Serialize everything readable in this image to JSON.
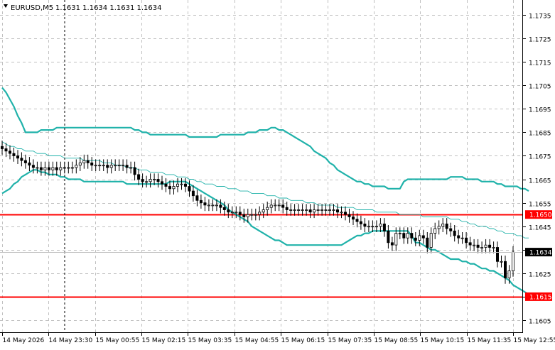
{
  "header": {
    "symbol": "EURUSD,M5",
    "ohlc": "1.1631 1.1634 1.1631 1.1634"
  },
  "colors": {
    "background": "#ffffff",
    "grid": "#c0c0c0",
    "candle": "#000000",
    "band": "#20b2aa",
    "ma": "#20b2aa",
    "level": "#ff0000",
    "price_label_bg": "#000000",
    "level_label_bg": "#ff0000"
  },
  "chart_data": {
    "type": "candlestick",
    "title": "",
    "grid": true,
    "ylim": [
      1.16,
      1.1745
    ],
    "y_ticks": [
      "1.1735",
      "1.1725",
      "1.1715",
      "1.1705",
      "1.1695",
      "1.1685",
      "1.1675",
      "1.1665",
      "1.1655",
      "1.1645",
      "1.1635",
      "1.1625",
      "1.1615",
      "1.1605"
    ],
    "x_ticks": [
      "14 May 2026",
      "14 May 23:30",
      "15 May 00:55",
      "15 May 02:15",
      "15 May 03:35",
      "15 May 04:55",
      "15 May 06:15",
      "15 May 07:35",
      "15 May 08:55",
      "15 May 10:15",
      "15 May 11:35",
      "15 May 12:55"
    ],
    "current_price": "1.1634",
    "levels": [
      {
        "label": "1.1650",
        "value": 1.165
      },
      {
        "label": "1.1615",
        "value": 1.1615
      }
    ],
    "cursor_time": "14 May 23:30",
    "candle_count": 132,
    "close": [
      1.1678,
      1.1677,
      1.1676,
      1.1675,
      1.1674,
      1.1673,
      1.1672,
      1.1671,
      1.167,
      1.167,
      1.1669,
      1.167,
      1.1669,
      1.167,
      1.1669,
      1.167,
      1.167,
      1.167,
      1.167,
      1.1671,
      1.1672,
      1.1673,
      1.1672,
      1.1671,
      1.1671,
      1.1671,
      1.1671,
      1.167,
      1.1671,
      1.1671,
      1.1671,
      1.1671,
      1.167,
      1.167,
      1.1667,
      1.1665,
      1.1664,
      1.1664,
      1.1665,
      1.1665,
      1.1664,
      1.1663,
      1.1662,
      1.1661,
      1.1662,
      1.1663,
      1.1663,
      1.1662,
      1.166,
      1.1658,
      1.1656,
      1.1655,
      1.1654,
      1.1654,
      1.1654,
      1.1654,
      1.1653,
      1.1652,
      1.1651,
      1.1651,
      1.1651,
      1.165,
      1.1649,
      1.165,
      1.165,
      1.165,
      1.1651,
      1.1652,
      1.1653,
      1.1654,
      1.1654,
      1.1654,
      1.1653,
      1.1652,
      1.1652,
      1.1652,
      1.1652,
      1.1652,
      1.1652,
      1.1651,
      1.1652,
      1.1652,
      1.1652,
      1.1652,
      1.1652,
      1.1652,
      1.1651,
      1.1651,
      1.165,
      1.1649,
      1.1648,
      1.1647,
      1.1646,
      1.1645,
      1.1645,
      1.1645,
      1.1645,
      1.1646,
      1.1643,
      1.1638,
      1.1637,
      1.1642,
      1.1642,
      1.164,
      1.1642,
      1.164,
      1.1639,
      1.1641,
      1.164,
      1.1636,
      1.1642,
      1.1644,
      1.1645,
      1.1646,
      1.1644,
      1.1643,
      1.1641,
      1.164,
      1.164,
      1.1638,
      1.1637,
      1.1637,
      1.1636,
      1.1636,
      1.1637,
      1.1636,
      1.1636,
      1.163,
      1.163,
      1.1623,
      1.1626,
      1.1634
    ],
    "series": [
      {
        "name": "Upper band",
        "values": [
          1.1704,
          1.1702,
          1.1699,
          1.1696,
          1.1692,
          1.1689,
          1.1685,
          1.1685,
          1.1685,
          1.1685,
          1.1686,
          1.1686,
          1.1686,
          1.1686,
          1.1687,
          1.1687,
          1.1687,
          1.1687,
          1.1687,
          1.1687,
          1.1687,
          1.1687,
          1.1687,
          1.1687,
          1.1687,
          1.1687,
          1.1687,
          1.1687,
          1.1687,
          1.1687,
          1.1687,
          1.1687,
          1.1687,
          1.1687,
          1.1686,
          1.1686,
          1.1685,
          1.1685,
          1.1684,
          1.1684,
          1.1684,
          1.1684,
          1.1684,
          1.1684,
          1.1684,
          1.1684,
          1.1684,
          1.1684,
          1.1683,
          1.1683,
          1.1683,
          1.1683,
          1.1683,
          1.1683,
          1.1683,
          1.1683,
          1.1684,
          1.1684,
          1.1684,
          1.1684,
          1.1684,
          1.1684,
          1.1684,
          1.1685,
          1.1685,
          1.1685,
          1.1686,
          1.1686,
          1.1686,
          1.1687,
          1.1687,
          1.1686,
          1.1686,
          1.1685,
          1.1684,
          1.1683,
          1.1682,
          1.1681,
          1.168,
          1.1679,
          1.1677,
          1.1676,
          1.1675,
          1.1674,
          1.1672,
          1.1671,
          1.1669,
          1.1668,
          1.1667,
          1.1666,
          1.1665,
          1.1664,
          1.1664,
          1.1663,
          1.1663,
          1.1662,
          1.1662,
          1.1662,
          1.1662,
          1.1661,
          1.1661,
          1.1661,
          1.1661,
          1.1664,
          1.1665,
          1.1665,
          1.1665,
          1.1665,
          1.1665,
          1.1665,
          1.1665,
          1.1665,
          1.1665,
          1.1665,
          1.1665,
          1.1666,
          1.1666,
          1.1666,
          1.1666,
          1.1665,
          1.1665,
          1.1665,
          1.1665,
          1.1664,
          1.1664,
          1.1664,
          1.1664,
          1.1663,
          1.1663,
          1.1662,
          1.1662,
          1.1662,
          1.1662,
          1.1661,
          1.1661,
          1.166
        ]
      },
      {
        "name": "Middle band",
        "values": [
          1.1681,
          1.168,
          1.1679,
          1.1679,
          1.1678,
          1.1678,
          1.1677,
          1.1677,
          1.1677,
          1.1676,
          1.1676,
          1.1676,
          1.1675,
          1.1675,
          1.1675,
          1.1675,
          1.1674,
          1.1674,
          1.1674,
          1.1674,
          1.1674,
          1.1673,
          1.1673,
          1.1673,
          1.1673,
          1.1673,
          1.1672,
          1.1672,
          1.1672,
          1.1671,
          1.1671,
          1.1671,
          1.167,
          1.167,
          1.167,
          1.1669,
          1.1669,
          1.1669,
          1.1668,
          1.1668,
          1.1668,
          1.1668,
          1.1667,
          1.1667,
          1.1667,
          1.1666,
          1.1666,
          1.1666,
          1.1665,
          1.1665,
          1.1664,
          1.1664,
          1.1663,
          1.1663,
          1.1663,
          1.1662,
          1.1662,
          1.1662,
          1.1661,
          1.1661,
          1.1661,
          1.166,
          1.166,
          1.166,
          1.1659,
          1.1659,
          1.1659,
          1.1659,
          1.1658,
          1.1658,
          1.1658,
          1.1657,
          1.1657,
          1.1657,
          1.1656,
          1.1656,
          1.1656,
          1.1656,
          1.1655,
          1.1655,
          1.1655,
          1.1654,
          1.1654,
          1.1654,
          1.1654,
          1.1654,
          1.1653,
          1.1653,
          1.1653,
          1.1653,
          1.1653,
          1.1652,
          1.1652,
          1.1652,
          1.1652,
          1.1652,
          1.1651,
          1.1651,
          1.1651,
          1.1651,
          1.1651,
          1.1651,
          1.165,
          1.165,
          1.165,
          1.165,
          1.165,
          1.165,
          1.1649,
          1.1649,
          1.1649,
          1.1649,
          1.1649,
          1.1649,
          1.1649,
          1.1648,
          1.1648,
          1.1648,
          1.1647,
          1.1647,
          1.1646,
          1.1646,
          1.1645,
          1.1645,
          1.1645,
          1.1644,
          1.1644,
          1.1643,
          1.1643,
          1.1642,
          1.1642,
          1.1642,
          1.1641,
          1.1641,
          1.164,
          1.164
        ]
      },
      {
        "name": "Lower band",
        "values": [
          1.1659,
          1.166,
          1.1661,
          1.1663,
          1.1664,
          1.1666,
          1.1667,
          1.1668,
          1.1669,
          1.1669,
          1.1668,
          1.1668,
          1.1667,
          1.1667,
          1.1667,
          1.1666,
          1.1666,
          1.1665,
          1.1665,
          1.1665,
          1.1665,
          1.1664,
          1.1664,
          1.1664,
          1.1664,
          1.1664,
          1.1664,
          1.1664,
          1.1664,
          1.1664,
          1.1664,
          1.1664,
          1.1663,
          1.1663,
          1.1663,
          1.1663,
          1.1663,
          1.1663,
          1.1663,
          1.1663,
          1.1663,
          1.1663,
          1.1663,
          1.1664,
          1.1664,
          1.1664,
          1.1664,
          1.1664,
          1.1663,
          1.1662,
          1.1661,
          1.166,
          1.1659,
          1.1658,
          1.1657,
          1.1656,
          1.1655,
          1.1654,
          1.1652,
          1.1651,
          1.165,
          1.1649,
          1.1648,
          1.1647,
          1.1645,
          1.1644,
          1.1643,
          1.1642,
          1.1641,
          1.164,
          1.1639,
          1.1639,
          1.1638,
          1.1637,
          1.1637,
          1.1637,
          1.1637,
          1.1637,
          1.1637,
          1.1637,
          1.1637,
          1.1637,
          1.1637,
          1.1637,
          1.1637,
          1.1637,
          1.1637,
          1.1637,
          1.1638,
          1.1639,
          1.164,
          1.1641,
          1.1641,
          1.1642,
          1.1642,
          1.1643,
          1.1643,
          1.1643,
          1.1643,
          1.1643,
          1.1643,
          1.1643,
          1.1643,
          1.1643,
          1.1643,
          1.1641,
          1.1638,
          1.1638,
          1.1637,
          1.1636,
          1.1635,
          1.1635,
          1.1634,
          1.1633,
          1.1632,
          1.1631,
          1.1631,
          1.1631,
          1.163,
          1.163,
          1.1629,
          1.1629,
          1.1628,
          1.1627,
          1.1627,
          1.1626,
          1.1626,
          1.1625,
          1.1624,
          1.1623,
          1.1622,
          1.162,
          1.1619,
          1.1618,
          1.1617,
          1.1616
        ]
      }
    ]
  }
}
